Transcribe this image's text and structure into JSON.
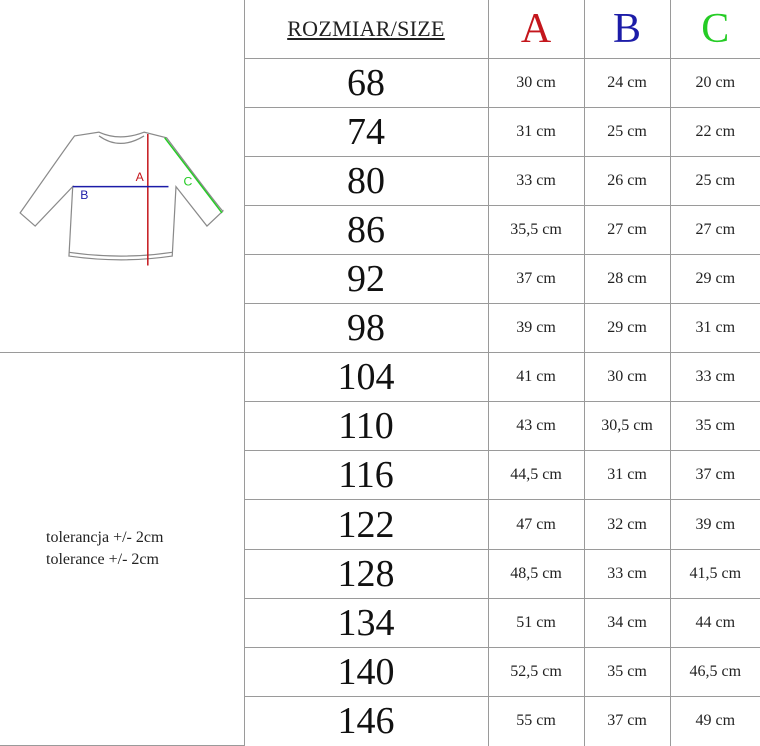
{
  "header": {
    "size_label": "ROZMIAR/SIZE",
    "columns": [
      {
        "letter": "A",
        "color": "#c4161c"
      },
      {
        "letter": "B",
        "color": "#1c1ca8"
      },
      {
        "letter": "C",
        "color": "#25cc25"
      }
    ]
  },
  "illustration": {
    "labels": {
      "a": "A",
      "b": "B",
      "c": "C"
    },
    "colors": {
      "a": "#c4161c",
      "b": "#1c1ca8",
      "c": "#25cc25"
    }
  },
  "tolerance": {
    "pl": "tolerancja +/- 2cm",
    "en": "tolerance +/- 2cm"
  },
  "rows": [
    {
      "size": "68",
      "a": "30 cm",
      "b": "24 cm",
      "c": "20 cm"
    },
    {
      "size": "74",
      "a": "31 cm",
      "b": "25 cm",
      "c": "22 cm"
    },
    {
      "size": "80",
      "a": "33 cm",
      "b": "26 cm",
      "c": "25 cm"
    },
    {
      "size": "86",
      "a": "35,5 cm",
      "b": "27 cm",
      "c": "27 cm"
    },
    {
      "size": "92",
      "a": "37 cm",
      "b": "28 cm",
      "c": "29 cm"
    },
    {
      "size": "98",
      "a": "39 cm",
      "b": "29 cm",
      "c": "31 cm"
    },
    {
      "size": "104",
      "a": "41 cm",
      "b": "30 cm",
      "c": "33 cm"
    },
    {
      "size": "110",
      "a": "43 cm",
      "b": "30,5 cm",
      "c": "35 cm"
    },
    {
      "size": "116",
      "a": "44,5 cm",
      "b": "31 cm",
      "c": "37 cm"
    },
    {
      "size": "122",
      "a": "47 cm",
      "b": "32 cm",
      "c": "39 cm"
    },
    {
      "size": "128",
      "a": "48,5 cm",
      "b": "33 cm",
      "c": "41,5 cm"
    },
    {
      "size": "134",
      "a": "51 cm",
      "b": "34 cm",
      "c": "44 cm"
    },
    {
      "size": "140",
      "a": "52,5 cm",
      "b": "35 cm",
      "c": "46,5 cm"
    },
    {
      "size": "146",
      "a": "55 cm",
      "b": "37 cm",
      "c": "49 cm"
    }
  ]
}
